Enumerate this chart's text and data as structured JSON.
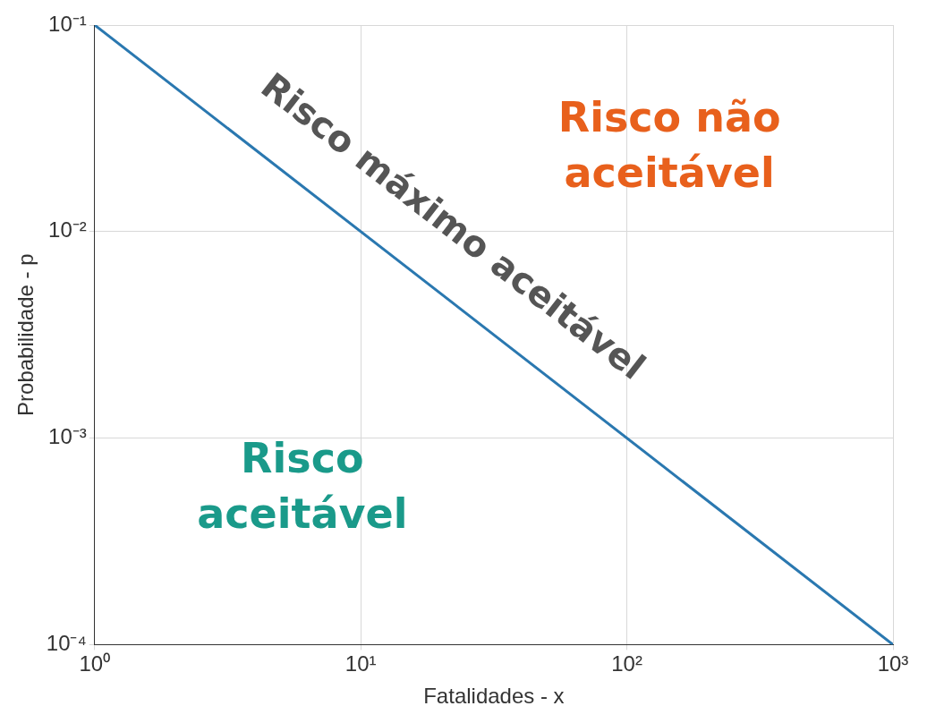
{
  "chart_data": {
    "type": "line",
    "xlabel": "Fatalidades - x",
    "ylabel": "Probabilidade - p",
    "x": [
      1,
      1000
    ],
    "series": [
      {
        "color": "#2a78b0",
        "values": [
          0.1,
          0.0001
        ]
      }
    ],
    "log": "xy",
    "grid": true,
    "legend": false,
    "marker": "none",
    "line_style": "solid",
    "xlim": [
      1,
      1000
    ],
    "ylim": [
      0.0001,
      0.1
    ],
    "xticks": [
      {
        "value": 1,
        "label": "10⁰"
      },
      {
        "value": 10,
        "label": "10¹"
      },
      {
        "value": 100,
        "label": "10²"
      },
      {
        "value": 1000,
        "label": "10³"
      }
    ],
    "yticks": [
      {
        "value": 0.0001,
        "label": "10⁻⁴"
      },
      {
        "value": 0.001,
        "label": "10⁻³"
      },
      {
        "value": 0.01,
        "label": "10⁻²"
      },
      {
        "value": 0.1,
        "label": "10⁻¹"
      }
    ],
    "annotations": [
      "Risco máximo aceitável",
      "Risco não aceitável",
      "Risco aceitável"
    ]
  }
}
